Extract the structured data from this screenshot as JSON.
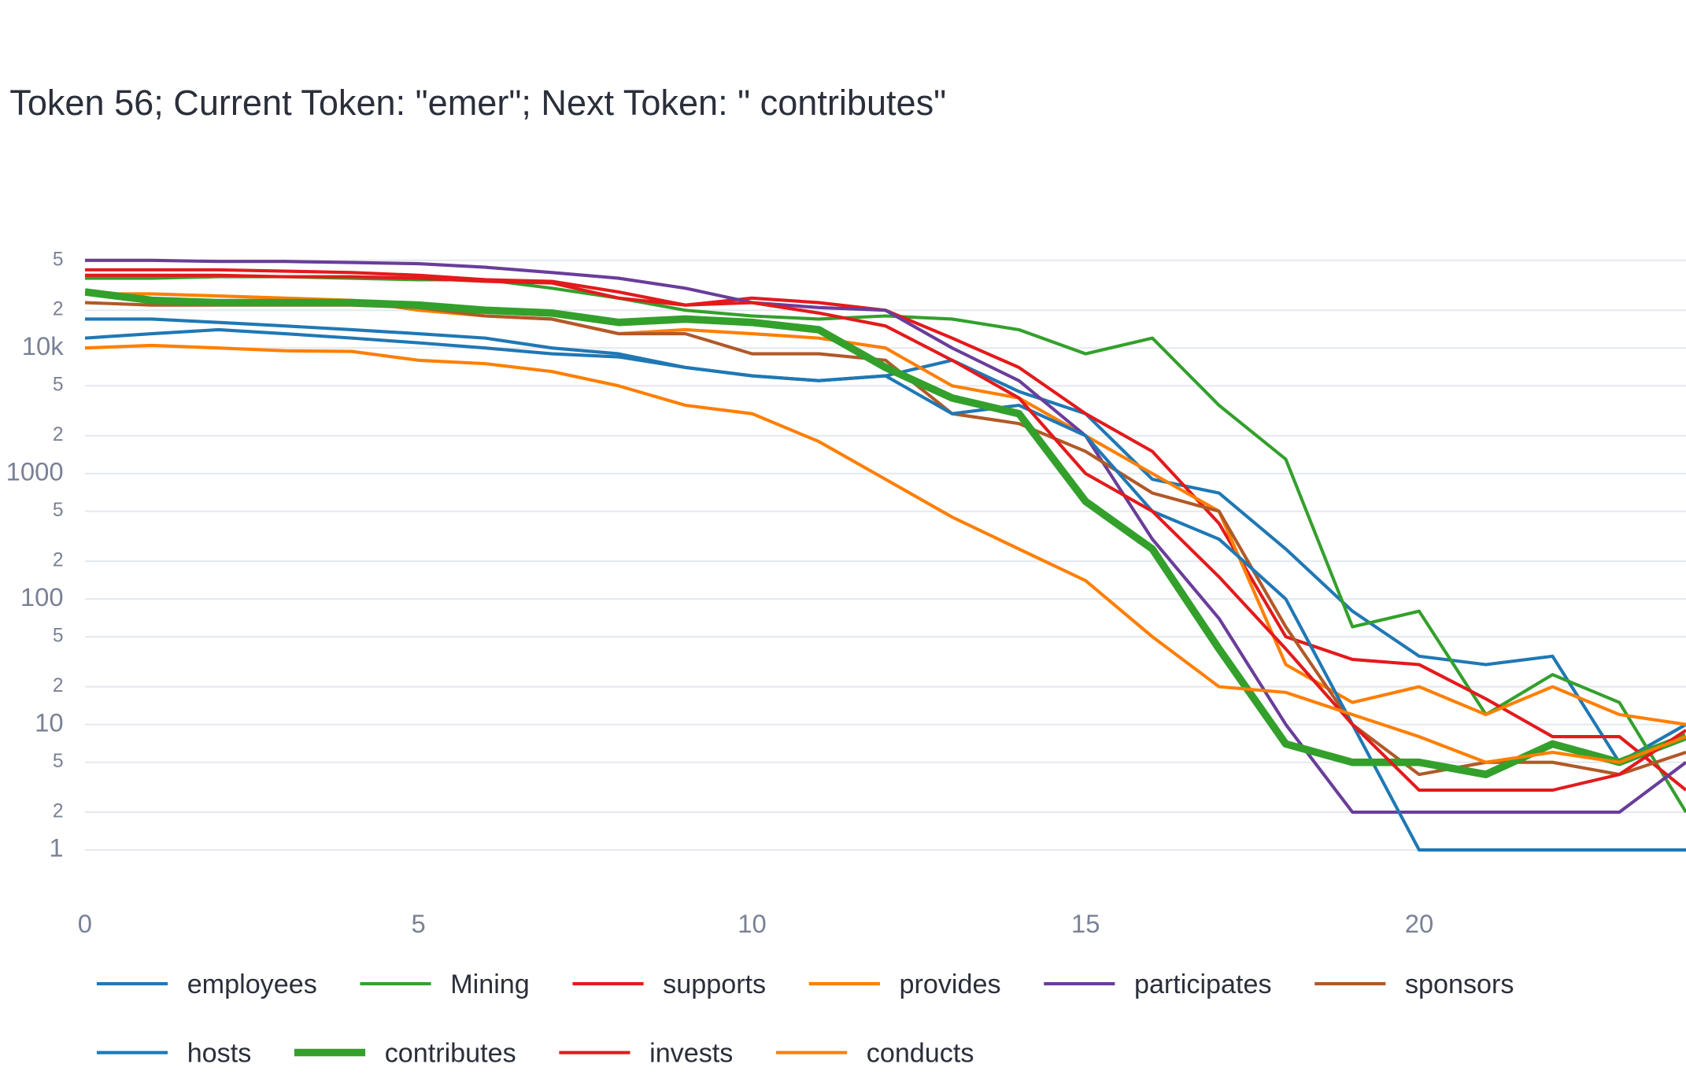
{
  "chart_data": {
    "type": "line",
    "title": "Token 56; Current Token: \"emer\"; Next Token: \" contributes\"",
    "x": [
      0,
      1,
      2,
      3,
      4,
      5,
      6,
      7,
      8,
      9,
      10,
      11,
      12,
      13,
      14,
      15,
      16,
      17,
      18,
      19,
      20,
      21,
      22,
      23,
      24
    ],
    "xlim": [
      0,
      24
    ],
    "xticks": [
      0,
      5,
      10,
      15,
      20
    ],
    "log_y": true,
    "grid": true,
    "ylim": [
      0.4,
      70000
    ],
    "yticks": [
      1,
      2,
      5,
      10,
      {
        "value": 20,
        "label": "2"
      },
      {
        "value": 50,
        "label": "5"
      },
      100,
      {
        "value": 200,
        "label": "2"
      },
      {
        "value": 500,
        "label": "5"
      },
      1000,
      {
        "value": 2000,
        "label": "2"
      },
      {
        "value": 5000,
        "label": "5"
      },
      {
        "value": 10000,
        "label": "10k"
      },
      {
        "value": 20000,
        "label": "2"
      },
      {
        "value": 50000,
        "label": "5"
      }
    ],
    "series": [
      {
        "name": "employees",
        "color": "#1f78b4",
        "width": 3,
        "values": [
          12000,
          13000,
          14000,
          13000,
          12000,
          11000,
          10000,
          9000,
          8500,
          7000,
          6000,
          5500,
          6000,
          8000,
          4500,
          3000,
          900,
          700,
          250,
          80,
          35,
          30,
          35,
          5,
          10
        ]
      },
      {
        "name": "Mining",
        "color": "#33a02c",
        "width": 3,
        "values": [
          36000,
          36000,
          37000,
          37000,
          36000,
          35000,
          35000,
          30000,
          25000,
          20000,
          18000,
          17000,
          18000,
          17000,
          14000,
          9000,
          12000,
          3500,
          1300,
          60,
          80,
          12,
          25,
          15,
          2
        ]
      },
      {
        "name": "supports",
        "color": "#e31a1c",
        "width": 3,
        "values": [
          42000,
          42000,
          42000,
          41000,
          40000,
          38000,
          35000,
          34000,
          28000,
          22000,
          25000,
          23000,
          20000,
          12000,
          7000,
          3000,
          1500,
          400,
          50,
          33,
          30,
          16,
          8,
          8,
          3
        ]
      },
      {
        "name": "provides",
        "color": "#ff7f00",
        "width": 3,
        "values": [
          27000,
          27000,
          26000,
          25000,
          24000,
          20000,
          18000,
          17000,
          13000,
          14000,
          13000,
          12000,
          10000,
          5000,
          4000,
          2000,
          1000,
          500,
          30,
          15,
          20,
          12,
          20,
          12,
          10
        ]
      },
      {
        "name": "participates",
        "color": "#6a3d9a",
        "width": 3,
        "values": [
          50000,
          50000,
          49000,
          49000,
          48000,
          47000,
          44000,
          40000,
          36000,
          30000,
          23000,
          21000,
          20000,
          10000,
          5500,
          2000,
          300,
          70,
          10,
          2,
          2,
          2,
          2,
          2,
          5
        ]
      },
      {
        "name": "sponsors",
        "color": "#b15928",
        "width": 3,
        "values": [
          23000,
          22000,
          22000,
          22000,
          22000,
          21000,
          18000,
          17000,
          13000,
          13000,
          9000,
          9000,
          8000,
          3000,
          2500,
          1500,
          700,
          500,
          60,
          10,
          4,
          5,
          5,
          4,
          6
        ]
      },
      {
        "name": "hosts",
        "color": "#1f78b4",
        "width": 3,
        "values": [
          17000,
          17000,
          16000,
          15000,
          14000,
          13000,
          12000,
          10000,
          9000,
          7000,
          6000,
          5500,
          6000,
          3000,
          3500,
          2000,
          500,
          300,
          100,
          10,
          1,
          1,
          1,
          1,
          1
        ]
      },
      {
        "name": "contributes",
        "color": "#33a02c",
        "width": 7,
        "values": [
          28000,
          24000,
          23000,
          23000,
          23000,
          22000,
          20000,
          19000,
          16000,
          17000,
          16000,
          14000,
          7000,
          4000,
          3000,
          600,
          250,
          40,
          7,
          5,
          5,
          4,
          7,
          5,
          8
        ]
      },
      {
        "name": "invests",
        "color": "#e31a1c",
        "width": 3,
        "values": [
          38000,
          38000,
          38000,
          37000,
          37000,
          36000,
          34000,
          33000,
          25000,
          22000,
          23000,
          19000,
          15000,
          8000,
          4000,
          1000,
          500,
          150,
          40,
          10,
          3,
          3,
          3,
          4,
          9
        ]
      },
      {
        "name": "conducts",
        "color": "#ff7f00",
        "width": 3,
        "values": [
          10000,
          10500,
          10000,
          9500,
          9400,
          8000,
          7500,
          6500,
          5000,
          3500,
          3000,
          1800,
          900,
          450,
          250,
          140,
          50,
          20,
          18,
          12,
          8,
          5,
          6,
          5,
          8
        ]
      }
    ]
  }
}
